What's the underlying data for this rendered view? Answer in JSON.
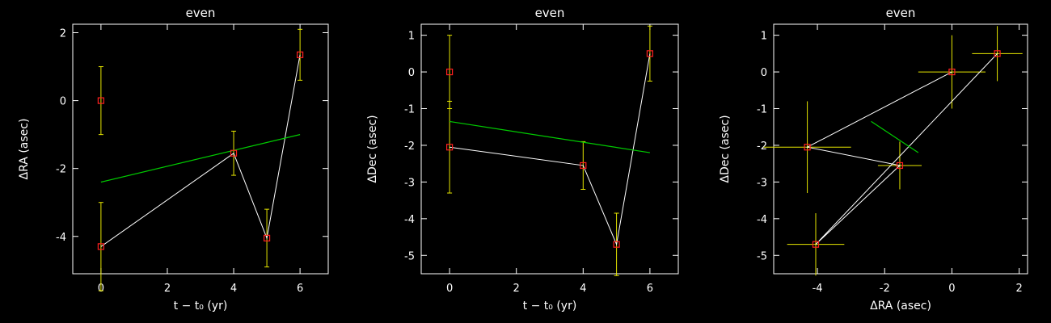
{
  "colors": {
    "background": "#000000",
    "axes": "#ffffff",
    "data_line": "#ffffff",
    "fit_line": "#00cc00",
    "error_bar": "#e6e600",
    "marker": "#ff2020"
  },
  "chart_data": [
    {
      "type": "scatter",
      "title": "even",
      "xlabel": "t − t₀ (yr)",
      "ylabel": "ΔRA (asec)",
      "xlim": [
        -0.85,
        6.85
      ],
      "ylim": [
        -5.1,
        2.25
      ],
      "xticks": [
        0,
        2,
        4,
        6
      ],
      "yticks": [
        -4,
        -2,
        0,
        2
      ],
      "grid": false,
      "points": [
        {
          "x": 0,
          "y": 0.0,
          "yerr": 1.0
        },
        {
          "x": 0,
          "y": -4.3,
          "yerr": 1.3
        },
        {
          "x": 4,
          "y": -1.55,
          "yerr": 0.65
        },
        {
          "x": 5,
          "y": -4.05,
          "yerr": 0.85
        },
        {
          "x": 6,
          "y": 1.35,
          "yerr": 0.75
        }
      ],
      "path": [
        [
          0,
          -4.3
        ],
        [
          4,
          -1.55
        ],
        [
          5,
          -4.05
        ],
        [
          6,
          1.35
        ]
      ],
      "fit_line": [
        [
          0,
          -2.4
        ],
        [
          6,
          -1.0
        ]
      ]
    },
    {
      "type": "scatter",
      "title": "even",
      "xlabel": "t − t₀ (yr)",
      "ylabel": "ΔDec (asec)",
      "xlim": [
        -0.85,
        6.85
      ],
      "ylim": [
        -5.5,
        1.3
      ],
      "xticks": [
        0,
        2,
        4,
        6
      ],
      "yticks": [
        -5,
        -4,
        -3,
        -2,
        -1,
        0,
        1
      ],
      "grid": false,
      "points": [
        {
          "x": 0,
          "y": 0.0,
          "yerr": 1.0
        },
        {
          "x": 0,
          "y": -2.05,
          "yerr": 1.25
        },
        {
          "x": 4,
          "y": -2.55,
          "yerr": 0.65
        },
        {
          "x": 5,
          "y": -4.7,
          "yerr": 0.85
        },
        {
          "x": 6,
          "y": 0.5,
          "yerr": 0.75
        }
      ],
      "path": [
        [
          0,
          -2.05
        ],
        [
          4,
          -2.55
        ],
        [
          5,
          -4.7
        ],
        [
          6,
          0.5
        ]
      ],
      "fit_line": [
        [
          0,
          -1.35
        ],
        [
          6,
          -2.2
        ]
      ]
    },
    {
      "type": "scatter",
      "title": "even",
      "xlabel": "ΔRA (asec)",
      "ylabel": "ΔDec (asec)",
      "xlim": [
        -5.3,
        2.25
      ],
      "ylim": [
        -5.5,
        1.3
      ],
      "xticks": [
        -4,
        -2,
        0,
        2
      ],
      "yticks": [
        -5,
        -4,
        -3,
        -2,
        -1,
        0,
        1
      ],
      "grid": false,
      "points": [
        {
          "x": 0,
          "y": 0.0,
          "xerr": 1.0,
          "yerr": 1.0
        },
        {
          "x": -4.3,
          "y": -2.05,
          "xerr": 1.3,
          "yerr": 1.25
        },
        {
          "x": -1.55,
          "y": -2.55,
          "xerr": 0.65,
          "yerr": 0.65
        },
        {
          "x": -4.05,
          "y": -4.7,
          "xerr": 0.85,
          "yerr": 0.85
        },
        {
          "x": 1.35,
          "y": 0.5,
          "xerr": 0.75,
          "yerr": 0.75
        }
      ],
      "path": [
        [
          0,
          0.0
        ],
        [
          -4.3,
          -2.05
        ],
        [
          -1.55,
          -2.55
        ],
        [
          -4.05,
          -4.7
        ],
        [
          1.35,
          0.5
        ]
      ],
      "fit_line": [
        [
          -2.4,
          -1.35
        ],
        [
          -1.0,
          -2.2
        ]
      ]
    }
  ]
}
